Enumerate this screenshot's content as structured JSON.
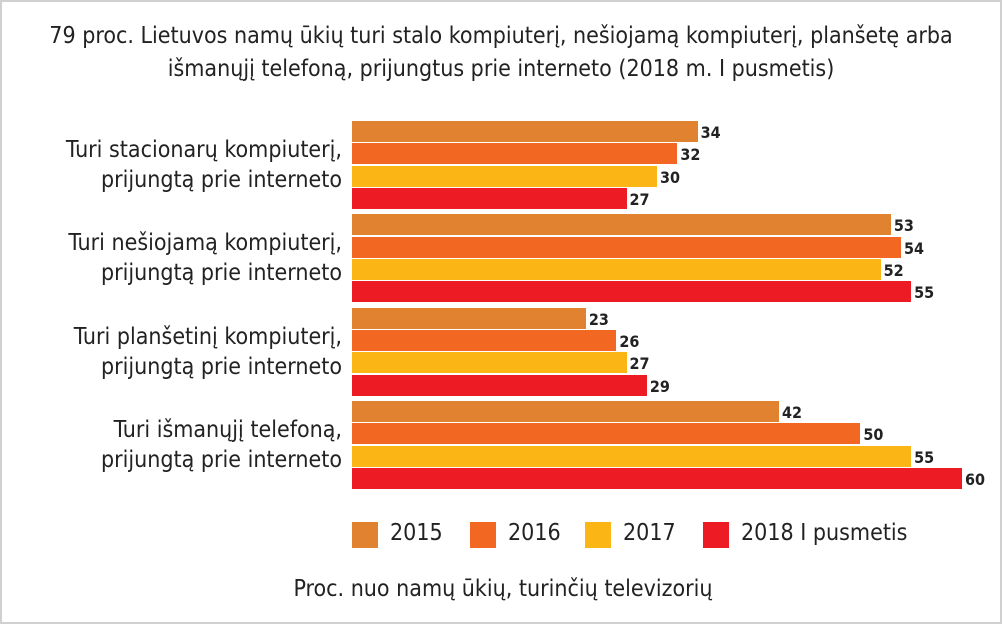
{
  "chart_data": {
    "type": "bar",
    "orientation": "horizontal",
    "title": "79 proc. Lietuvos namų ūkių turi stalo kompiuterį, nešiojamą kompiuterį, planšetę arba išmanųjį telefoną, prijungtus prie interneto (2018 m. I pusmetis)",
    "categories": [
      "Turi stacionarų kompiuterį,\nprijungtą prie interneto",
      "Turi nešiojamą kompiuterį,\nprijungtą prie interneto",
      "Turi planšetinį kompiuterį,\nprijungtą prie interneto",
      "Turi išmanųjį telefoną,\nprijungtą prie interneto"
    ],
    "series": [
      {
        "name": "2015",
        "color": "#e0822f",
        "values": [
          34,
          53,
          23,
          42
        ]
      },
      {
        "name": "2016",
        "color": "#f26722",
        "values": [
          32,
          54,
          26,
          50
        ]
      },
      {
        "name": "2017",
        "color": "#fbb615",
        "values": [
          30,
          52,
          27,
          55
        ]
      },
      {
        "name": "2018 I pusmetis",
        "color": "#ed1c24",
        "values": [
          27,
          55,
          29,
          60
        ]
      }
    ],
    "xlabel": "Proc. nuo namų ūkių, turinčių televizorių",
    "legend": "bottom"
  }
}
